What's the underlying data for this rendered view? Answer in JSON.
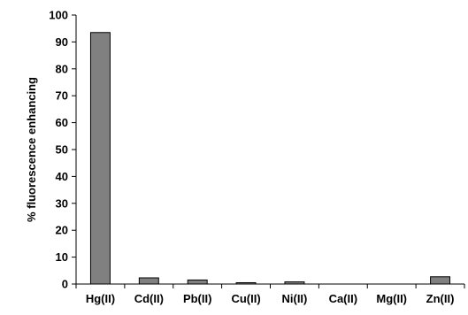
{
  "chart_data": {
    "type": "bar",
    "title": "",
    "xlabel": "",
    "ylabel": "% fluorescence enhancing",
    "categories": [
      "Hg(II)",
      "Cd(II)",
      "Pb(II)",
      "Cu(II)",
      "Ni(II)",
      "Ca(II)",
      "Mg(II)",
      "Zn(II)"
    ],
    "values": [
      93.5,
      2.3,
      1.5,
      0.5,
      0.8,
      0,
      0,
      2.7
    ],
    "ylim": [
      0,
      100
    ],
    "yticks": [
      0,
      10,
      20,
      30,
      40,
      50,
      60,
      70,
      80,
      90,
      100
    ],
    "grid": false,
    "legend": "none",
    "bar_color": "#808080",
    "bar_edge_color": "#000000"
  }
}
